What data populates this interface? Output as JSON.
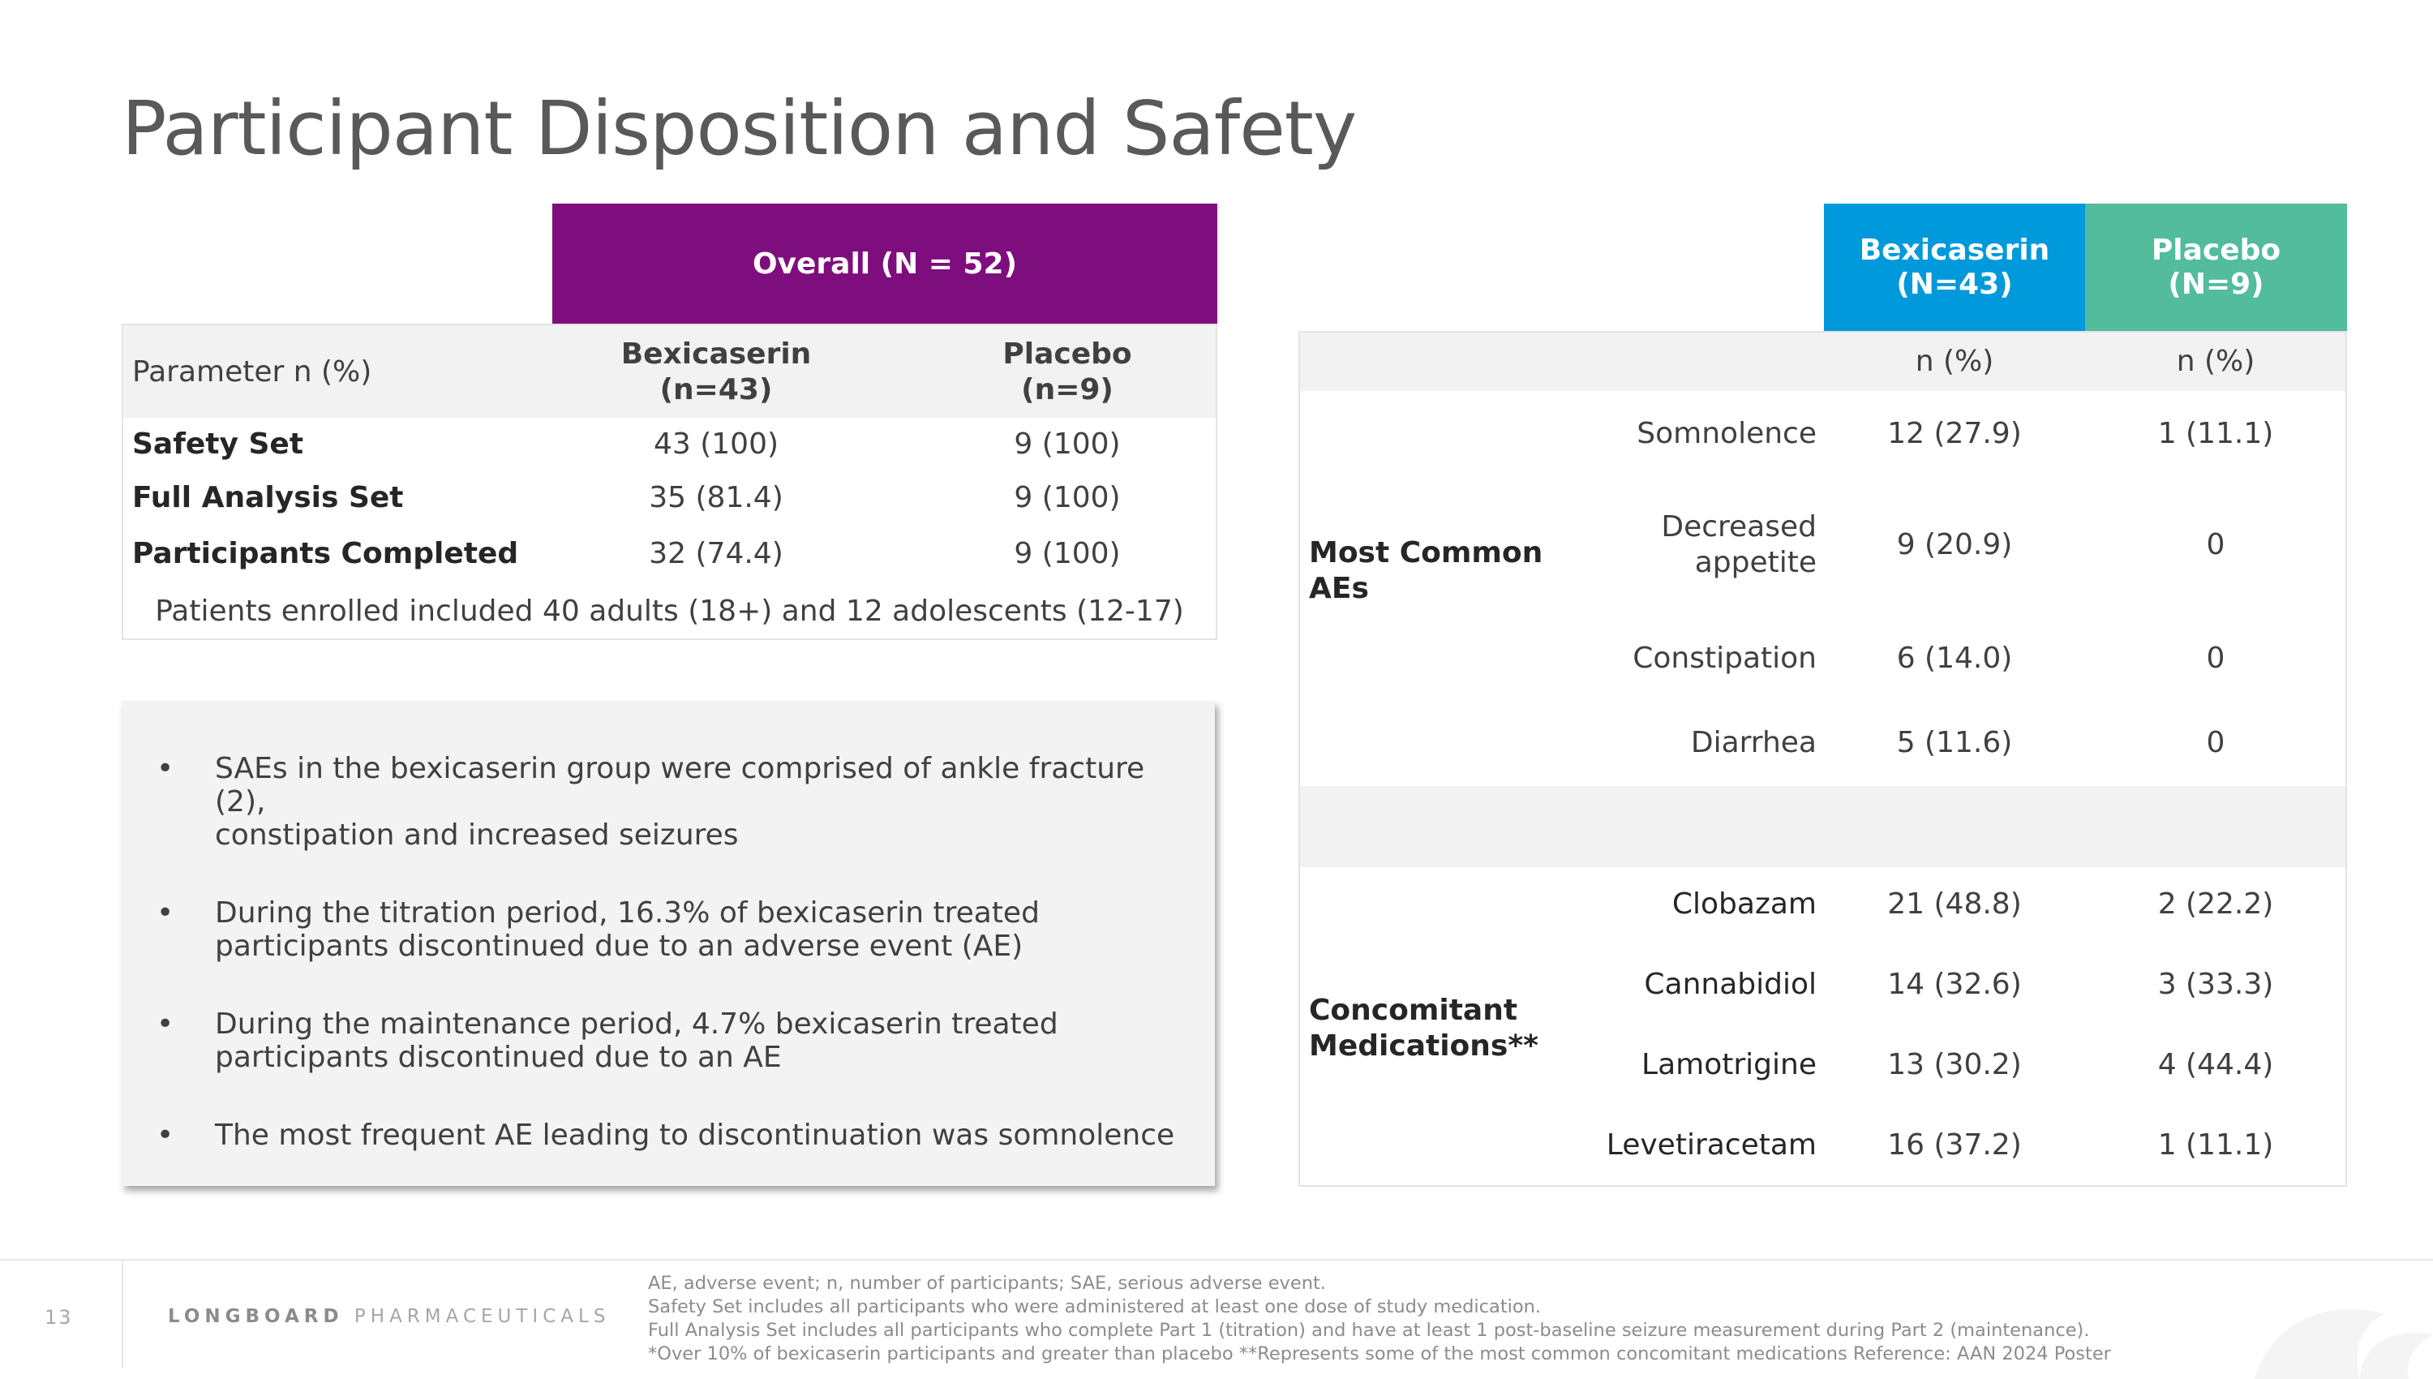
{
  "title": "Participant Disposition and Safety",
  "disposition": {
    "overall_header": "Overall  (N = 52)",
    "param_label": "Parameter n (%)",
    "col_bex": [
      "Bexicaserin",
      "(n=43)"
    ],
    "col_pla": [
      "Placebo",
      "(n=9)"
    ],
    "rows": [
      {
        "label": "Safety Set",
        "bex": "43 (100)",
        "pla": "9 (100)"
      },
      {
        "label": "Full Analysis Set",
        "bex": "35 (81.4)",
        "pla": "9 (100)"
      },
      {
        "label": "Participants Completed",
        "bex": "32 (74.4)",
        "pla": "9 (100)"
      }
    ],
    "note": "Patients enrolled included 40 adults (18+) and 12 adolescents (12-17)"
  },
  "bullets": [
    {
      "line1": "SAEs in the bexicaserin group were comprised of ankle fracture (2),",
      "line2": "constipation and increased seizures"
    },
    {
      "line1": "During the titration period, 16.3% of bexicaserin treated",
      "line2": "participants discontinued due to an adverse event (AE)"
    },
    {
      "line1": "During the maintenance period, 4.7% bexicaserin treated",
      "line2": "participants discontinued due to an AE"
    },
    {
      "line1": "The most frequent AE leading to discontinuation was somnolence",
      "line2": ""
    }
  ],
  "ae_table": {
    "header_bex": [
      "Bexicaserin",
      "(N=43)"
    ],
    "header_pla": [
      "Placebo",
      "(N=9)"
    ],
    "npct": "n (%)",
    "section_ae": [
      "Most Common",
      "AEs"
    ],
    "section_med": [
      "Concomitant",
      "Medications**"
    ],
    "aes": [
      {
        "name": [
          "Somnolence"
        ],
        "bex": "12 (27.9)",
        "pla": "1 (11.1)"
      },
      {
        "name": [
          "Decreased",
          "appetite"
        ],
        "bex": "9 (20.9)",
        "pla": "0"
      },
      {
        "name": [
          "Constipation"
        ],
        "bex": "6 (14.0)",
        "pla": "0"
      },
      {
        "name": [
          "Diarrhea"
        ],
        "bex": "5 (11.6)",
        "pla": "0"
      }
    ],
    "meds": [
      {
        "name": "Clobazam",
        "bex": "21 (48.8)",
        "pla": "2 (22.2)"
      },
      {
        "name": "Cannabidiol",
        "bex": "14 (32.6)",
        "pla": "3 (33.3)"
      },
      {
        "name": "Lamotrigine",
        "bex": "13 (30.2)",
        "pla": "4 (44.4)"
      },
      {
        "name": "Levetiracetam",
        "bex": "16 (37.2)",
        "pla": "1 (11.1)"
      }
    ]
  },
  "footer": {
    "page_number": "13",
    "brand_bold": "LONGBOARD",
    "brand_rest": "PHARMACEUTICALS",
    "notes": [
      "AE, adverse event; n, number of participants; SAE, serious adverse event.",
      "Safety Set includes all participants who were administered at least one dose of study medication.",
      "Full Analysis Set includes all participants who complete Part 1 (titration) and have at least 1 post-baseline seizure measurement during Part 2 (maintenance).",
      "*Over 10% of bexicaserin participants and greater than placebo  **Represents some of the most common concomitant medications Reference: AAN 2024 Poster"
    ]
  },
  "colors": {
    "overall": "#7E0E7E",
    "bexicaserin": "#0099DB",
    "placebo": "#52BC9B",
    "band": "#f2f2f2"
  }
}
